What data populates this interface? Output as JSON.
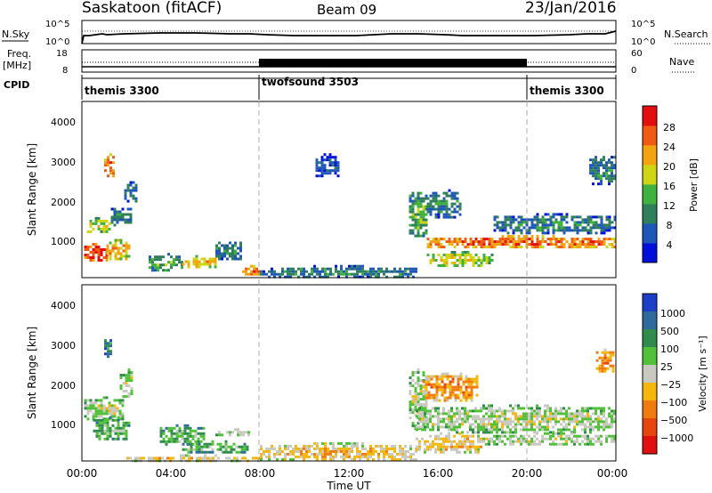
{
  "header": {
    "station": "Saskatoon (fitACF)",
    "beam": "Beam 09",
    "date": "23/Jan/2016"
  },
  "top_panel": {
    "left_label": "N.Sky",
    "right_label": "N.Search",
    "left_ticks": [
      "10^5",
      "10^0"
    ],
    "right_ticks": [
      "10^5",
      "10^0"
    ]
  },
  "freq_panel": {
    "left_label_1": "Freq.",
    "left_label_2": "[MHz]",
    "right_label": "Nave",
    "left_ticks": [
      "18",
      "8"
    ],
    "right_ticks": [
      "60",
      "0"
    ]
  },
  "cpid": {
    "label": "CPID",
    "segments": [
      {
        "name": "themis 3300",
        "start_hour": 0,
        "end_hour": 8
      },
      {
        "name": "twofsound 3503",
        "start_hour": 8,
        "end_hour": 20
      },
      {
        "name": "themis 3300",
        "start_hour": 20,
        "end_hour": 24
      }
    ]
  },
  "chart_data": [
    {
      "type": "heatmap",
      "parameter": "power",
      "ylabel": "Slant Range [km]",
      "ylim": [
        180,
        4600
      ],
      "yticks": [
        "1000",
        "2000",
        "3000",
        "4000"
      ],
      "xlim": [
        0,
        24
      ],
      "colorbar": {
        "label": "Power [dB]",
        "ticks": [
          "4",
          "8",
          "12",
          "16",
          "20",
          "24",
          "28"
        ],
        "colors": [
          "#0010d8",
          "#1f57b8",
          "#2f7f5c",
          "#3fb23d",
          "#cdd514",
          "#f2a410",
          "#f05a12",
          "#e30e0e"
        ]
      },
      "regions": [
        {
          "t": [
            0.1,
            1.1
          ],
          "r": [
            600,
            1050
          ],
          "level": 7
        },
        {
          "t": [
            1.1,
            2.1
          ],
          "r": [
            650,
            1150
          ],
          "level": 5
        },
        {
          "t": [
            0.1,
            1.3
          ],
          "r": [
            1300,
            1700
          ],
          "level": 4
        },
        {
          "t": [
            1.3,
            2.2
          ],
          "r": [
            1500,
            2000
          ],
          "level": 2
        },
        {
          "t": [
            1.0,
            1.4
          ],
          "r": [
            2700,
            3300
          ],
          "level": 6
        },
        {
          "t": [
            1.9,
            2.5
          ],
          "r": [
            2100,
            2600
          ],
          "level": 2
        },
        {
          "t": [
            3.0,
            4.5
          ],
          "r": [
            350,
            800
          ],
          "level": 3
        },
        {
          "t": [
            4.5,
            6.0
          ],
          "r": [
            420,
            750
          ],
          "level": 5
        },
        {
          "t": [
            6.0,
            7.2
          ],
          "r": [
            650,
            1150
          ],
          "level": 2
        },
        {
          "t": [
            7.2,
            8.0
          ],
          "r": [
            250,
            500
          ],
          "level": 6
        },
        {
          "t": [
            8.0,
            15.0
          ],
          "r": [
            200,
            500
          ],
          "level": 2
        },
        {
          "t": [
            10.5,
            11.5
          ],
          "r": [
            2700,
            3300
          ],
          "level": 1
        },
        {
          "t": [
            14.7,
            15.5
          ],
          "r": [
            1200,
            2400
          ],
          "level": 3
        },
        {
          "t": [
            15.5,
            17.0
          ],
          "r": [
            1700,
            2400
          ],
          "level": 2
        },
        {
          "t": [
            15.5,
            18.5
          ],
          "r": [
            500,
            850
          ],
          "level": 4
        },
        {
          "t": [
            15.5,
            24.0
          ],
          "r": [
            950,
            1250
          ],
          "level": 6
        },
        {
          "t": [
            18.5,
            24.0
          ],
          "r": [
            1300,
            1800
          ],
          "level": 2
        },
        {
          "t": [
            22.8,
            24.0
          ],
          "r": [
            2500,
            3300
          ],
          "level": 2
        }
      ]
    },
    {
      "type": "heatmap",
      "parameter": "velocity",
      "ylabel": "Slant Range [km]",
      "ylim": [
        180,
        4600
      ],
      "yticks": [
        "1000",
        "2000",
        "3000",
        "4000"
      ],
      "xlim": [
        0,
        24
      ],
      "xticks": [
        "00:00",
        "04:00",
        "08:00",
        "12:00",
        "16:00",
        "20:00",
        "00:00"
      ],
      "xlabel": "Time UT",
      "colorbar": {
        "label": "Velocity  [m s⁻¹]",
        "ticks": [
          "1000",
          "500",
          "100",
          "25",
          "−25",
          "−100",
          "−500",
          "−1000"
        ],
        "colors": [
          "#1b3fc7",
          "#2c6b9c",
          "#2f8c4d",
          "#52c13a",
          "#c9c9c1",
          "#f4b70e",
          "#f07c10",
          "#e5450f",
          "#e11010"
        ]
      },
      "regions": [
        {
          "t": [
            0.1,
            1.8
          ],
          "r": [
            1200,
            1800
          ],
          "level": 4
        },
        {
          "t": [
            0.5,
            2.1
          ],
          "r": [
            700,
            1300
          ],
          "level": 3
        },
        {
          "t": [
            1.7,
            2.3
          ],
          "r": [
            1800,
            2500
          ],
          "level": 4
        },
        {
          "t": [
            1.0,
            1.3
          ],
          "r": [
            2800,
            3300
          ],
          "level": 2
        },
        {
          "t": [
            3.5,
            5.5
          ],
          "r": [
            600,
            1100
          ],
          "level": 3
        },
        {
          "t": [
            4.5,
            7.5
          ],
          "r": [
            400,
            700
          ],
          "level": 3
        },
        {
          "t": [
            6.0,
            7.5
          ],
          "r": [
            800,
            1000
          ],
          "level": 4
        },
        {
          "t": [
            2.0,
            8.0
          ],
          "r": [
            200,
            350
          ],
          "level": 5
        },
        {
          "t": [
            8.0,
            15.0
          ],
          "r": [
            200,
            650
          ],
          "level": 5
        },
        {
          "t": [
            14.7,
            15.5
          ],
          "r": [
            1000,
            2500
          ],
          "level": 4
        },
        {
          "t": [
            15.3,
            17.8
          ],
          "r": [
            1700,
            2400
          ],
          "level": 6
        },
        {
          "t": [
            15.0,
            18.0
          ],
          "r": [
            400,
            900
          ],
          "level": 5
        },
        {
          "t": [
            15.0,
            24.0
          ],
          "r": [
            900,
            1600
          ],
          "level": 4
        },
        {
          "t": [
            18.0,
            24.0
          ],
          "r": [
            600,
            900
          ],
          "level": 4
        },
        {
          "t": [
            23.1,
            23.9
          ],
          "r": [
            2400,
            3000
          ],
          "level": 6
        }
      ]
    }
  ]
}
